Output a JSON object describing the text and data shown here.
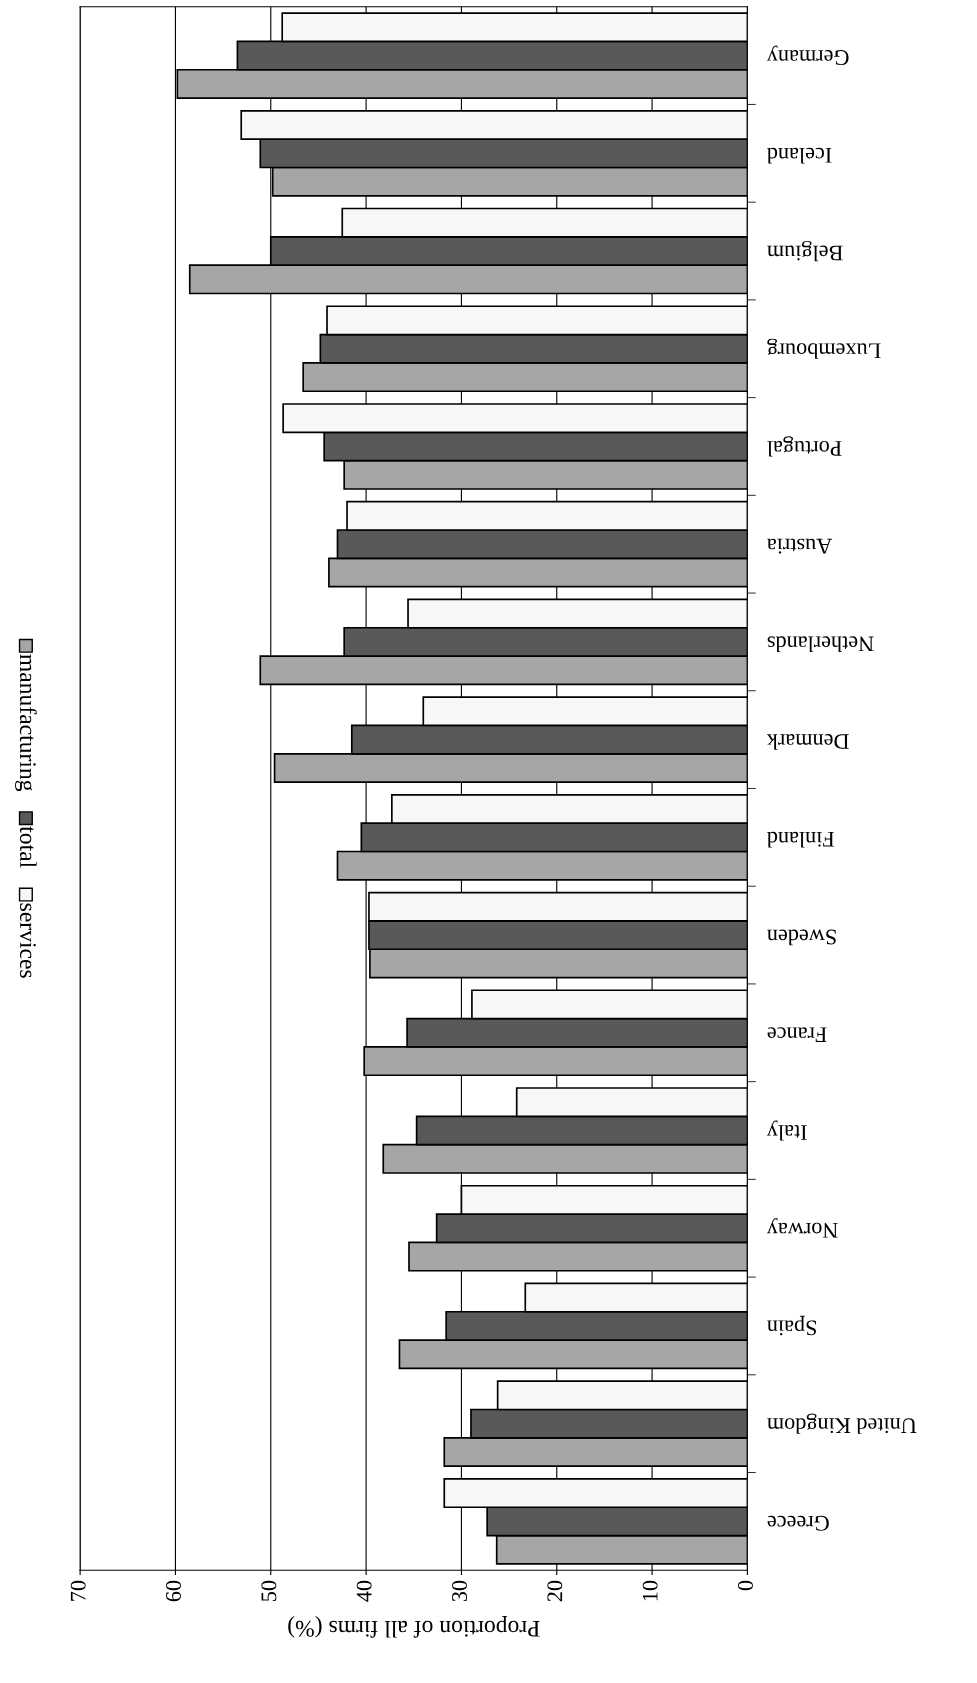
{
  "chart_data": {
    "type": "bar",
    "orientation": "horizontal",
    "xlabel": "Proportion of all firms (%)",
    "categories": [
      "Germany",
      "Iceland",
      "Belgium",
      "Luxembourg",
      "Portugal",
      "Austria",
      "Netherlands",
      "Denmark",
      "Finland",
      "Sweden",
      "France",
      "Italy",
      "Norway",
      "Spain",
      "United Kingdom",
      "Greece"
    ],
    "series": [
      {
        "name": "manufacturing",
        "color": "#a6a6a6",
        "values": [
          59.8,
          49.8,
          58.5,
          46.6,
          42.3,
          43.9,
          51.1,
          49.6,
          43.0,
          39.6,
          40.2,
          38.2,
          35.5,
          36.5,
          31.8,
          26.3
        ]
      },
      {
        "name": "total",
        "color": "#595959",
        "values": [
          53.5,
          51.1,
          50.0,
          44.8,
          44.4,
          43.0,
          42.3,
          41.5,
          40.5,
          39.7,
          35.7,
          34.7,
          32.6,
          31.6,
          29.0,
          27.3
        ]
      },
      {
        "name": "services",
        "color": "#f7f7f7",
        "values": [
          48.8,
          53.1,
          42.5,
          44.1,
          48.7,
          42.0,
          35.6,
          34.0,
          37.3,
          39.7,
          28.9,
          24.2,
          30.0,
          23.3,
          26.2,
          31.8
        ]
      }
    ],
    "xlim": [
      70,
      0
    ],
    "xticks": [
      0,
      10,
      20,
      30,
      40,
      50,
      60,
      70
    ],
    "grid": "x",
    "legend": "left"
  }
}
